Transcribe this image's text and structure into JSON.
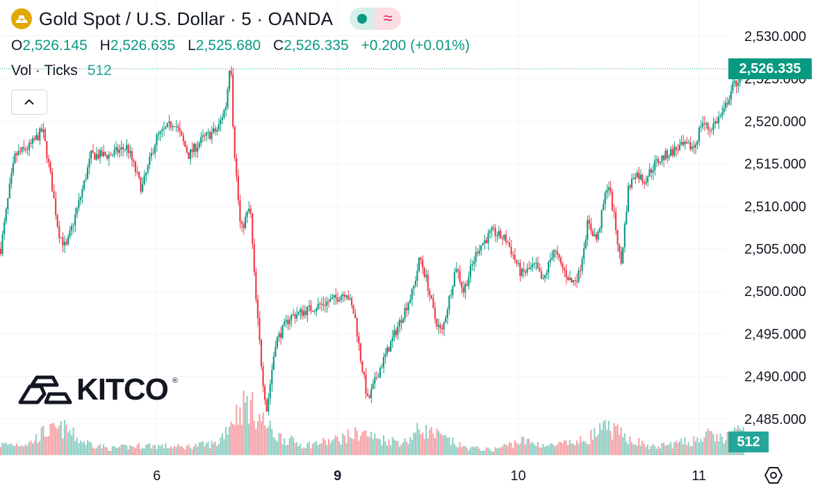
{
  "header": {
    "title": "Gold Spot / U.S. Dollar · 5 · OANDA",
    "wave_glyph": "≈",
    "ohlc": {
      "o_label": "O",
      "o": "2,526.145",
      "h_label": "H",
      "h": "2,526.635",
      "l_label": "L",
      "l": "2,525.680",
      "c_label": "C",
      "c": "2,526.335",
      "change": "+0.200 (+0.01%)"
    },
    "volume": {
      "label": "Vol · Ticks",
      "value": "512"
    },
    "collapse_glyph": "^"
  },
  "price_tag": "2,526.335",
  "volume_tag": "512",
  "logo": {
    "text": "KITCO",
    "reg": "®"
  },
  "colors": {
    "up": "#089981",
    "down": "#f23645",
    "vol_up": "#8fcfc4",
    "vol_down": "#f5a3a8",
    "grid": "#f0f3fa",
    "brand": "#e0a800"
  },
  "icons": {
    "symbol": "gold-bars-icon",
    "status": "market-open-dot-icon",
    "settings": "chart-settings-icon",
    "collapse": "chevron-up-icon"
  },
  "chart_data": {
    "type": "candlestick",
    "interval": "5 minutes",
    "y_ticks": [
      "2,530.000",
      "2,525.000",
      "2,520.000",
      "2,515.000",
      "2,510.000",
      "2,505.000",
      "2,500.000",
      "2,495.000",
      "2,490.000",
      "2,485.000"
    ],
    "x_ticks": [
      {
        "label": "6",
        "pos": 0.217,
        "bold": false
      },
      {
        "label": "9",
        "pos": 0.467,
        "bold": true
      },
      {
        "label": "10",
        "pos": 0.717,
        "bold": false
      },
      {
        "label": "11",
        "pos": 0.967,
        "bold": false
      }
    ],
    "ylim": [
      2483,
      2531
    ],
    "last_price": 2526.335,
    "last_volume": 512,
    "price_path": [
      [
        0.0,
        2505
      ],
      [
        0.012,
        2512
      ],
      [
        0.02,
        2516
      ],
      [
        0.04,
        2517
      ],
      [
        0.058,
        2519
      ],
      [
        0.068,
        2514
      ],
      [
        0.08,
        2507
      ],
      [
        0.09,
        2505
      ],
      [
        0.11,
        2511
      ],
      [
        0.125,
        2516
      ],
      [
        0.15,
        2516
      ],
      [
        0.175,
        2517
      ],
      [
        0.195,
        2512
      ],
      [
        0.215,
        2518
      ],
      [
        0.24,
        2520
      ],
      [
        0.26,
        2516
      ],
      [
        0.28,
        2518
      ],
      [
        0.3,
        2519
      ],
      [
        0.312,
        2522
      ],
      [
        0.318,
        2528
      ],
      [
        0.322,
        2518
      ],
      [
        0.332,
        2507
      ],
      [
        0.345,
        2510
      ],
      [
        0.352,
        2500
      ],
      [
        0.362,
        2490
      ],
      [
        0.368,
        2486
      ],
      [
        0.38,
        2494
      ],
      [
        0.4,
        2497
      ],
      [
        0.43,
        2498
      ],
      [
        0.46,
        2499
      ],
      [
        0.478,
        2500
      ],
      [
        0.49,
        2497
      ],
      [
        0.498,
        2492
      ],
      [
        0.508,
        2487
      ],
      [
        0.52,
        2490
      ],
      [
        0.535,
        2493
      ],
      [
        0.55,
        2496
      ],
      [
        0.57,
        2500
      ],
      [
        0.58,
        2504
      ],
      [
        0.59,
        2501
      ],
      [
        0.6,
        2497
      ],
      [
        0.61,
        2495
      ],
      [
        0.63,
        2503
      ],
      [
        0.64,
        2500
      ],
      [
        0.66,
        2505
      ],
      [
        0.68,
        2507
      ],
      [
        0.7,
        2506
      ],
      [
        0.72,
        2502
      ],
      [
        0.74,
        2503
      ],
      [
        0.75,
        2501
      ],
      [
        0.765,
        2505
      ],
      [
        0.775,
        2503
      ],
      [
        0.79,
        2501
      ],
      [
        0.8,
        2502
      ],
      [
        0.812,
        2508
      ],
      [
        0.825,
        2506
      ],
      [
        0.84,
        2513
      ],
      [
        0.85,
        2508
      ],
      [
        0.858,
        2503
      ],
      [
        0.868,
        2512
      ],
      [
        0.878,
        2514
      ],
      [
        0.89,
        2513
      ],
      [
        0.905,
        2515
      ],
      [
        0.92,
        2516
      ],
      [
        0.94,
        2517
      ],
      [
        0.96,
        2517
      ],
      [
        0.97,
        2520
      ],
      [
        0.98,
        2519
      ],
      [
        0.99,
        2520
      ],
      [
        1.0,
        2521
      ],
      [
        1.012,
        2524
      ],
      [
        1.022,
        2525
      ],
      [
        1.03,
        2526.3
      ]
    ],
    "volume_path": [
      [
        0.0,
        0.16
      ],
      [
        0.04,
        0.18
      ],
      [
        0.06,
        0.35
      ],
      [
        0.09,
        0.4
      ],
      [
        0.11,
        0.22
      ],
      [
        0.15,
        0.1
      ],
      [
        0.2,
        0.15
      ],
      [
        0.25,
        0.12
      ],
      [
        0.3,
        0.18
      ],
      [
        0.32,
        0.55
      ],
      [
        0.34,
        0.8
      ],
      [
        0.36,
        0.55
      ],
      [
        0.38,
        0.3
      ],
      [
        0.42,
        0.15
      ],
      [
        0.46,
        0.22
      ],
      [
        0.5,
        0.35
      ],
      [
        0.52,
        0.25
      ],
      [
        0.56,
        0.2
      ],
      [
        0.58,
        0.4
      ],
      [
        0.6,
        0.32
      ],
      [
        0.64,
        0.12
      ],
      [
        0.68,
        0.08
      ],
      [
        0.72,
        0.22
      ],
      [
        0.76,
        0.14
      ],
      [
        0.8,
        0.2
      ],
      [
        0.84,
        0.42
      ],
      [
        0.86,
        0.3
      ],
      [
        0.9,
        0.12
      ],
      [
        0.95,
        0.2
      ],
      [
        0.98,
        0.3
      ],
      [
        1.0,
        0.25
      ],
      [
        1.03,
        0.4
      ]
    ]
  }
}
